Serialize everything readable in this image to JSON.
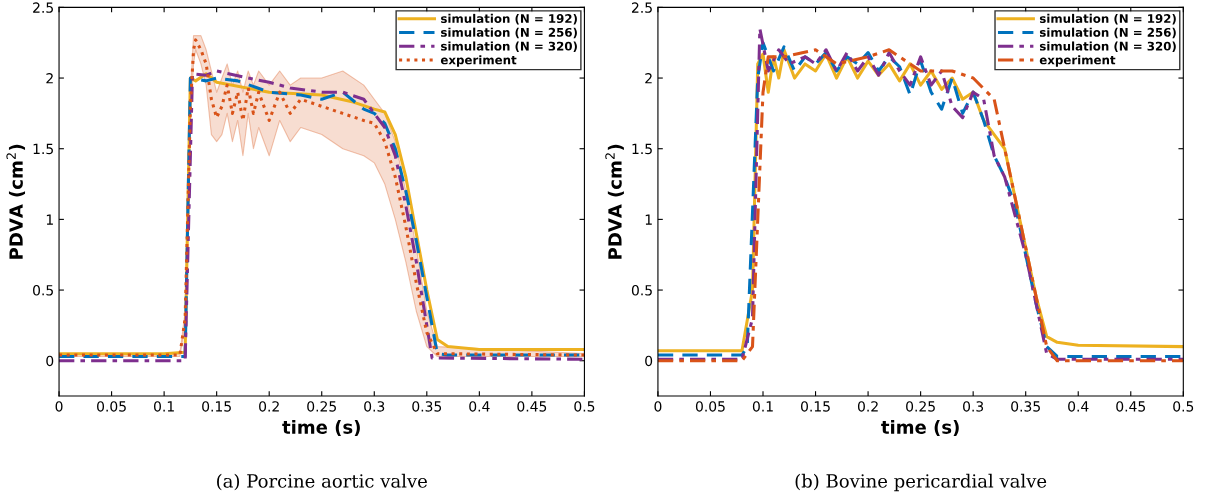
{
  "chart_data": [
    {
      "type": "line",
      "xlabel": "time (s)",
      "ylabel": "PDVA (cm$^{2}$)",
      "xlim": [
        0,
        0.5
      ],
      "ylim": [
        -0.25,
        2.5
      ],
      "xticks": [
        0,
        0.05,
        0.1,
        0.15,
        0.2,
        0.25,
        0.3,
        0.35,
        0.4,
        0.45,
        0.5
      ],
      "yticks": [
        0,
        0.5,
        1,
        1.5,
        2,
        2.5
      ],
      "grid": false,
      "legend": "top right",
      "marker": "none",
      "annotations": [
        "(a) Porcine aortic valve"
      ],
      "series": [
        {
          "name": "simulation (N = 192)",
          "color": "#edb120",
          "line_style": "solid",
          "x": [
            0,
            0.05,
            0.1,
            0.12,
            0.125,
            0.13,
            0.14,
            0.15,
            0.2,
            0.25,
            0.28,
            0.3,
            0.31,
            0.32,
            0.33,
            0.34,
            0.35,
            0.36,
            0.37,
            0.4,
            0.5
          ],
          "values": [
            0.05,
            0.05,
            0.05,
            0.06,
            2.0,
            1.98,
            2.03,
            1.97,
            1.9,
            1.88,
            1.83,
            1.78,
            1.76,
            1.6,
            1.3,
            0.9,
            0.5,
            0.15,
            0.1,
            0.08,
            0.08
          ]
        },
        {
          "name": "simulation (N = 256)",
          "color": "#0072bd",
          "line_style": "dashed",
          "x": [
            0,
            0.1,
            0.12,
            0.125,
            0.14,
            0.15,
            0.17,
            0.2,
            0.23,
            0.25,
            0.27,
            0.29,
            0.3,
            0.31,
            0.32,
            0.33,
            0.34,
            0.35,
            0.36,
            0.37,
            0.5
          ],
          "values": [
            0.03,
            0.03,
            0.03,
            2.0,
            1.98,
            2.0,
            1.98,
            1.9,
            1.88,
            1.85,
            1.9,
            1.78,
            1.75,
            1.68,
            1.5,
            1.2,
            0.85,
            0.45,
            0.05,
            0.04,
            0.04
          ]
        },
        {
          "name": "simulation (N = 320)",
          "color": "#7e2f8e",
          "line_style": "dashdot",
          "x": [
            0,
            0.1,
            0.12,
            0.127,
            0.14,
            0.15,
            0.18,
            0.2,
            0.22,
            0.25,
            0.27,
            0.29,
            0.3,
            0.31,
            0.32,
            0.33,
            0.34,
            0.35,
            0.355,
            0.5
          ],
          "values": [
            0.0,
            0.0,
            0.0,
            2.03,
            2.02,
            2.05,
            2.0,
            1.97,
            1.93,
            1.9,
            1.9,
            1.85,
            1.75,
            1.65,
            1.45,
            1.1,
            0.7,
            0.25,
            0.02,
            0.01
          ]
        },
        {
          "name": "experiment",
          "color": "#d95319",
          "line_style": "dotted",
          "x": [
            0,
            0.115,
            0.12,
            0.125,
            0.128,
            0.13,
            0.135,
            0.14,
            0.145,
            0.15,
            0.155,
            0.16,
            0.165,
            0.17,
            0.175,
            0.18,
            0.185,
            0.19,
            0.2,
            0.21,
            0.22,
            0.23,
            0.25,
            0.27,
            0.29,
            0.3,
            0.31,
            0.32,
            0.33,
            0.34,
            0.35,
            0.36,
            0.5
          ],
          "values": [
            0.04,
            0.04,
            0.3,
            1.8,
            2.2,
            2.27,
            2.2,
            2.1,
            1.85,
            1.72,
            1.8,
            1.95,
            1.75,
            1.9,
            1.7,
            1.93,
            1.75,
            1.9,
            1.7,
            1.9,
            1.75,
            1.85,
            1.8,
            1.75,
            1.7,
            1.68,
            1.55,
            1.3,
            0.95,
            0.55,
            0.2,
            0.05,
            0.04
          ],
          "lower": [
            0.03,
            0.03,
            0.25,
            1.7,
            2.1,
            2.2,
            2.1,
            1.95,
            1.6,
            1.55,
            1.6,
            1.75,
            1.55,
            1.7,
            1.45,
            1.75,
            1.5,
            1.65,
            1.45,
            1.7,
            1.55,
            1.65,
            1.6,
            1.5,
            1.45,
            1.4,
            1.25,
            1.0,
            0.7,
            0.35,
            0.1,
            0.03,
            0.03
          ],
          "upper": [
            0.05,
            0.05,
            0.35,
            1.9,
            2.3,
            2.3,
            2.3,
            2.2,
            2.05,
            1.9,
            2.0,
            2.1,
            1.95,
            2.05,
            1.9,
            2.05,
            1.95,
            2.05,
            1.95,
            2.05,
            1.95,
            2.0,
            2.0,
            2.05,
            1.95,
            1.85,
            1.75,
            1.55,
            1.2,
            0.8,
            0.35,
            0.1,
            0.05
          ]
        }
      ]
    },
    {
      "type": "line",
      "xlabel": "time (s)",
      "ylabel": "PDVA (cm$^{2}$)",
      "xlim": [
        0,
        0.5
      ],
      "ylim": [
        -0.25,
        2.5
      ],
      "xticks": [
        0,
        0.05,
        0.1,
        0.15,
        0.2,
        0.25,
        0.3,
        0.35,
        0.4,
        0.45,
        0.5
      ],
      "yticks": [
        0,
        0.5,
        1,
        1.5,
        2,
        2.5
      ],
      "grid": false,
      "legend": "top right",
      "marker": "none",
      "annotations": [
        "(b) Bovine pericardial valve"
      ],
      "series": [
        {
          "name": "simulation (N = 192)",
          "color": "#edb120",
          "line_style": "solid",
          "x": [
            0,
            0.08,
            0.09,
            0.095,
            0.1,
            0.105,
            0.11,
            0.115,
            0.12,
            0.13,
            0.14,
            0.15,
            0.16,
            0.17,
            0.18,
            0.19,
            0.2,
            0.21,
            0.22,
            0.23,
            0.24,
            0.25,
            0.26,
            0.27,
            0.28,
            0.29,
            0.3,
            0.31,
            0.32,
            0.33,
            0.34,
            0.35,
            0.36,
            0.37,
            0.38,
            0.4,
            0.5
          ],
          "values": [
            0.07,
            0.07,
            0.5,
            2.1,
            2.17,
            1.9,
            2.15,
            2.0,
            2.2,
            2.0,
            2.1,
            2.05,
            2.17,
            2.0,
            2.15,
            2.0,
            2.12,
            2.02,
            2.1,
            1.98,
            2.1,
            1.95,
            2.05,
            1.92,
            2.0,
            1.85,
            1.9,
            1.7,
            1.6,
            1.5,
            1.15,
            0.8,
            0.45,
            0.17,
            0.13,
            0.11,
            0.1
          ]
        },
        {
          "name": "simulation (N = 256)",
          "color": "#0072bd",
          "line_style": "dashed",
          "x": [
            0,
            0.08,
            0.085,
            0.095,
            0.1,
            0.11,
            0.12,
            0.13,
            0.14,
            0.15,
            0.16,
            0.17,
            0.18,
            0.19,
            0.2,
            0.21,
            0.22,
            0.23,
            0.24,
            0.25,
            0.26,
            0.27,
            0.28,
            0.29,
            0.3,
            0.31,
            0.32,
            0.33,
            0.34,
            0.35,
            0.36,
            0.37,
            0.38,
            0.5
          ],
          "values": [
            0.04,
            0.04,
            0.1,
            2.0,
            2.25,
            2.05,
            2.22,
            2.05,
            2.15,
            2.1,
            2.18,
            2.05,
            2.15,
            2.1,
            2.18,
            2.05,
            2.15,
            2.08,
            1.88,
            2.12,
            1.9,
            1.78,
            2.0,
            1.75,
            1.9,
            1.7,
            1.45,
            1.3,
            1.1,
            0.75,
            0.4,
            0.1,
            0.03,
            0.03
          ]
        },
        {
          "name": "simulation (N = 320)",
          "color": "#7e2f8e",
          "line_style": "dashdot",
          "x": [
            0,
            0.08,
            0.09,
            0.097,
            0.105,
            0.115,
            0.125,
            0.14,
            0.15,
            0.16,
            0.17,
            0.18,
            0.19,
            0.2,
            0.21,
            0.22,
            0.23,
            0.24,
            0.25,
            0.26,
            0.27,
            0.28,
            0.29,
            0.3,
            0.31,
            0.32,
            0.33,
            0.35,
            0.37,
            0.38,
            0.5
          ],
          "values": [
            0.01,
            0.01,
            0.3,
            2.35,
            2.05,
            2.2,
            2.1,
            2.15,
            2.1,
            2.2,
            2.05,
            2.18,
            2.05,
            2.15,
            2.02,
            2.18,
            2.05,
            1.95,
            2.15,
            1.95,
            2.05,
            1.8,
            1.72,
            1.9,
            1.85,
            1.45,
            1.3,
            0.75,
            0.05,
            0.01,
            0.01
          ]
        },
        {
          "name": "experiment",
          "color": "#d95319",
          "line_style": "dashdot",
          "x": [
            0,
            0.08,
            0.09,
            0.1,
            0.105,
            0.12,
            0.15,
            0.17,
            0.2,
            0.22,
            0.25,
            0.28,
            0.3,
            0.32,
            0.33,
            0.34,
            0.35,
            0.36,
            0.37,
            0.38,
            0.5
          ],
          "values": [
            0.0,
            0.0,
            0.1,
            1.9,
            2.15,
            2.15,
            2.2,
            2.1,
            2.15,
            2.2,
            2.05,
            2.05,
            2.0,
            1.85,
            1.5,
            1.15,
            0.8,
            0.45,
            0.1,
            0.0,
            0.0
          ]
        }
      ]
    }
  ]
}
